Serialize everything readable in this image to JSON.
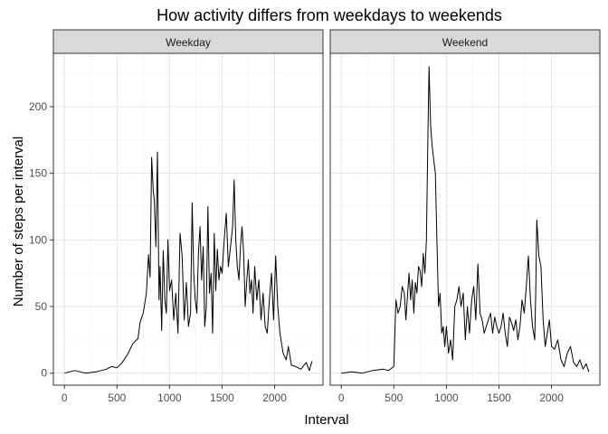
{
  "chart_data": {
    "type": "line",
    "title": "How activity differs from weekdays to weekends",
    "xlabel": "Interval",
    "ylabel": "Number of steps per interval",
    "xlim": [
      -105,
      2460
    ],
    "ylim": [
      -9,
      240
    ],
    "xticks": [
      0,
      500,
      1000,
      1500,
      2000
    ],
    "yticks": [
      0,
      50,
      100,
      150,
      200
    ],
    "grid": true,
    "facets": [
      {
        "name": "Weekday",
        "x": [
          0,
          100,
          200,
          300,
          400,
          450,
          500,
          550,
          600,
          650,
          700,
          720,
          750,
          780,
          800,
          815,
          830,
          845,
          855,
          870,
          885,
          900,
          910,
          925,
          940,
          955,
          970,
          985,
          1000,
          1020,
          1040,
          1060,
          1080,
          1100,
          1120,
          1140,
          1160,
          1180,
          1200,
          1215,
          1230,
          1245,
          1260,
          1275,
          1290,
          1305,
          1320,
          1335,
          1350,
          1365,
          1380,
          1395,
          1410,
          1425,
          1440,
          1455,
          1470,
          1485,
          1500,
          1520,
          1540,
          1560,
          1580,
          1600,
          1615,
          1630,
          1645,
          1660,
          1675,
          1690,
          1705,
          1720,
          1735,
          1750,
          1765,
          1780,
          1795,
          1810,
          1830,
          1850,
          1870,
          1890,
          1910,
          1930,
          1950,
          1970,
          1990,
          2010,
          2030,
          2050,
          2080,
          2110,
          2130,
          2160,
          2200,
          2250,
          2300,
          2330,
          2355
        ],
        "y": [
          0,
          2,
          0,
          1,
          3,
          5,
          4,
          8,
          14,
          22,
          26,
          38,
          45,
          60,
          89,
          72,
          162,
          137,
          130,
          95,
          166,
          55,
          80,
          32,
          92,
          55,
          45,
          100,
          62,
          70,
          40,
          60,
          30,
          105,
          88,
          40,
          68,
          35,
          45,
          128,
          75,
          55,
          45,
          90,
          110,
          70,
          95,
          35,
          50,
          125,
          60,
          75,
          30,
          105,
          62,
          93,
          70,
          80,
          75,
          100,
          120,
          80,
          95,
          110,
          145,
          100,
          80,
          70,
          95,
          110,
          90,
          50,
          70,
          85,
          60,
          70,
          45,
          80,
          55,
          70,
          40,
          60,
          35,
          30,
          55,
          75,
          40,
          88,
          50,
          30,
          15,
          10,
          20,
          6,
          5,
          3,
          8,
          2,
          9
        ]
      },
      {
        "name": "Weekend",
        "x": [
          0,
          100,
          200,
          300,
          400,
          450,
          500,
          520,
          540,
          560,
          580,
          600,
          615,
          630,
          645,
          660,
          675,
          690,
          705,
          720,
          735,
          750,
          765,
          780,
          795,
          810,
          825,
          835,
          850,
          865,
          880,
          895,
          910,
          925,
          940,
          955,
          970,
          985,
          1000,
          1020,
          1040,
          1060,
          1080,
          1100,
          1120,
          1140,
          1160,
          1180,
          1200,
          1220,
          1240,
          1260,
          1280,
          1300,
          1320,
          1340,
          1360,
          1380,
          1400,
          1420,
          1440,
          1460,
          1480,
          1500,
          1520,
          1540,
          1560,
          1580,
          1600,
          1620,
          1640,
          1660,
          1680,
          1700,
          1720,
          1740,
          1760,
          1780,
          1800,
          1820,
          1840,
          1850,
          1860,
          1880,
          1900,
          1920,
          1940,
          1960,
          1980,
          2000,
          2030,
          2060,
          2090,
          2120,
          2150,
          2180,
          2210,
          2240,
          2270,
          2300,
          2330,
          2355
        ],
        "y": [
          0,
          1,
          0,
          2,
          3,
          2,
          5,
          55,
          45,
          50,
          65,
          60,
          40,
          58,
          75,
          55,
          70,
          45,
          68,
          60,
          80,
          77,
          65,
          90,
          75,
          100,
          180,
          230,
          185,
          170,
          160,
          150,
          100,
          50,
          60,
          30,
          35,
          20,
          35,
          15,
          25,
          10,
          50,
          55,
          65,
          50,
          60,
          25,
          50,
          30,
          55,
          65,
          40,
          82,
          45,
          40,
          30,
          35,
          40,
          45,
          30,
          42,
          35,
          30,
          35,
          45,
          30,
          20,
          42,
          38,
          32,
          40,
          25,
          35,
          55,
          45,
          65,
          88,
          55,
          35,
          25,
          60,
          115,
          88,
          80,
          40,
          20,
          30,
          40,
          20,
          18,
          25,
          10,
          5,
          15,
          20,
          8,
          5,
          10,
          3,
          7,
          1
        ]
      }
    ]
  }
}
